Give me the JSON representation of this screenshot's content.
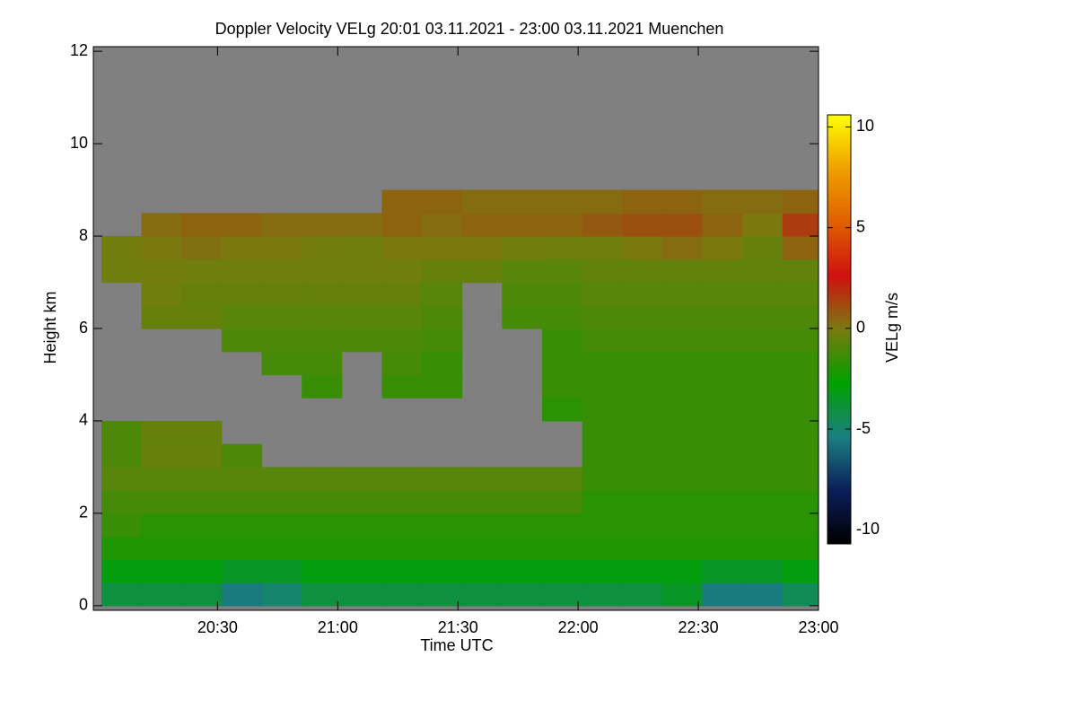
{
  "chart_data": {
    "type": "heatmap",
    "title": "Doppler Velocity VELg   20:01 03.11.2021 - 23:00 03.11.2021 Muenchen",
    "xlabel": "Time UTC",
    "ylabel": "Height km",
    "zlabel": "VELg m/s",
    "background": "#808080",
    "colormap": [
      "#000000",
      "#0a1e5a",
      "#1a8080",
      "#00a000",
      "#7a7a10",
      "#d01010",
      "#e06000",
      "#f0a000",
      "#ffff00"
    ],
    "xlim": [
      1199,
      1380
    ],
    "xticks": [
      {
        "value": 1230,
        "label": "20:30"
      },
      {
        "value": 1260,
        "label": "21:00"
      },
      {
        "value": 1290,
        "label": "21:30"
      },
      {
        "value": 1320,
        "label": "22:00"
      },
      {
        "value": 1350,
        "label": "22:30"
      },
      {
        "value": 1380,
        "label": "23:00"
      }
    ],
    "ylim": [
      -0.1,
      12.1
    ],
    "yticks": [
      0,
      2,
      4,
      6,
      8,
      10,
      12
    ],
    "zlim": [
      -10.7,
      10.6
    ],
    "zticks": [
      -10,
      -5,
      0,
      5,
      10
    ],
    "x": [
      1201,
      1211,
      1221,
      1231,
      1241,
      1251,
      1261,
      1271,
      1281,
      1291,
      1301,
      1311,
      1321,
      1331,
      1341,
      1351,
      1361,
      1371
    ],
    "y": [
      0,
      0.5,
      1,
      1.5,
      2,
      2.5,
      3,
      3.5,
      4,
      4.5,
      5,
      5.5,
      6,
      6.5,
      7,
      7.5,
      8,
      8.5
    ],
    "values": [
      [
        -4,
        -4,
        -4,
        -5.5,
        -5,
        -4,
        -4,
        -4,
        -4,
        -4,
        -4,
        -4,
        -4,
        -4,
        -3.5,
        -5.5,
        -5.5,
        -4.5
      ],
      [
        -3,
        -3,
        -3,
        -3.5,
        -3.5,
        -3,
        -3,
        -3,
        -3,
        -3,
        -3,
        -3,
        -3,
        -3,
        -3,
        -3.5,
        -3.5,
        -3
      ],
      [
        -2,
        -2,
        -2,
        -2,
        -2,
        -2,
        -2,
        -2,
        -2,
        -2,
        -2,
        -2,
        -2,
        -2,
        -2,
        -2,
        -2,
        -2
      ],
      [
        -1.5,
        -1.8,
        -1.8,
        -1.8,
        -1.8,
        -1.8,
        -1.8,
        -1.8,
        -1.8,
        -1.8,
        -1.8,
        -1.8,
        -1.8,
        -1.8,
        -1.8,
        -1.8,
        -1.8,
        -1.8
      ],
      [
        -1.2,
        -1.2,
        -1.2,
        -1.2,
        -1.2,
        -1.2,
        -1.2,
        -1.2,
        -1.2,
        -1.2,
        -1.2,
        -1.2,
        -1.8,
        -1.8,
        -1.8,
        -1.8,
        -1.8,
        -1.8
      ],
      [
        -0.8,
        -0.8,
        -0.8,
        -0.8,
        -0.8,
        -0.8,
        -0.8,
        -0.8,
        -0.8,
        -0.8,
        -0.8,
        -0.8,
        -1.5,
        -1.5,
        -1.5,
        -1.5,
        -1.5,
        -1.5
      ],
      [
        -1,
        -0.5,
        -0.5,
        -1,
        null,
        null,
        null,
        null,
        null,
        null,
        null,
        null,
        -1.5,
        -1.5,
        -1.5,
        -1.5,
        -1.5,
        -1.5
      ],
      [
        -1,
        -0.5,
        -0.5,
        null,
        null,
        null,
        null,
        null,
        null,
        null,
        null,
        null,
        -1.5,
        -1.5,
        -1.5,
        -1.5,
        -1.5,
        -1.5
      ],
      [
        null,
        null,
        null,
        null,
        null,
        null,
        null,
        null,
        null,
        null,
        null,
        -1.8,
        -1.5,
        -1.5,
        -1.5,
        -1.5,
        -1.5,
        -1.5
      ],
      [
        null,
        null,
        null,
        null,
        null,
        -1.5,
        null,
        -1.5,
        -1.5,
        null,
        null,
        -1.5,
        -1.5,
        -1.5,
        -1.5,
        -1.5,
        -1.5,
        -1.5
      ],
      [
        null,
        null,
        null,
        null,
        -1.2,
        -1.2,
        null,
        -1.2,
        -1.5,
        null,
        null,
        -1.5,
        -1.5,
        -1.5,
        -1.5,
        -1.5,
        -1.5,
        -1.5
      ],
      [
        null,
        null,
        null,
        -1,
        -1,
        -1,
        -1,
        -1,
        -1.2,
        null,
        null,
        -1.5,
        -1.2,
        -1.2,
        -1.2,
        -1.2,
        -1.2,
        -1.2
      ],
      [
        null,
        -0.5,
        -0.5,
        -0.8,
        -0.8,
        -0.8,
        -0.8,
        -0.8,
        -1,
        null,
        -1.2,
        -1.2,
        -1,
        -1,
        -1,
        -1,
        -1,
        -1
      ],
      [
        null,
        -0.3,
        -0.5,
        -0.5,
        -0.5,
        -0.5,
        -0.5,
        -0.5,
        -0.8,
        null,
        -1,
        -1,
        -0.8,
        -0.8,
        -0.8,
        -0.8,
        -0.8,
        -0.8
      ],
      [
        -0.3,
        -0.2,
        -0.3,
        -0.3,
        -0.3,
        -0.3,
        -0.3,
        -0.3,
        -0.5,
        -0.5,
        -0.8,
        -0.8,
        -0.6,
        -0.6,
        -0.6,
        -0.6,
        -0.6,
        -0.6
      ],
      [
        -0.2,
        0,
        0.2,
        0,
        0,
        -0.2,
        -0.3,
        0,
        0,
        0,
        -0.2,
        -0.3,
        -0.3,
        0,
        0.3,
        0,
        -0.5,
        0.5
      ],
      [
        null,
        0.3,
        0.5,
        0.5,
        0.3,
        0.3,
        0.3,
        0.5,
        0.3,
        0.5,
        0.5,
        0.5,
        0.8,
        1,
        1,
        0.5,
        0,
        1.5
      ],
      [
        null,
        null,
        null,
        null,
        null,
        null,
        null,
        0.5,
        0.5,
        0.3,
        0.3,
        0.3,
        0.3,
        0.5,
        0.5,
        0.3,
        0.3,
        0.5
      ]
    ]
  }
}
